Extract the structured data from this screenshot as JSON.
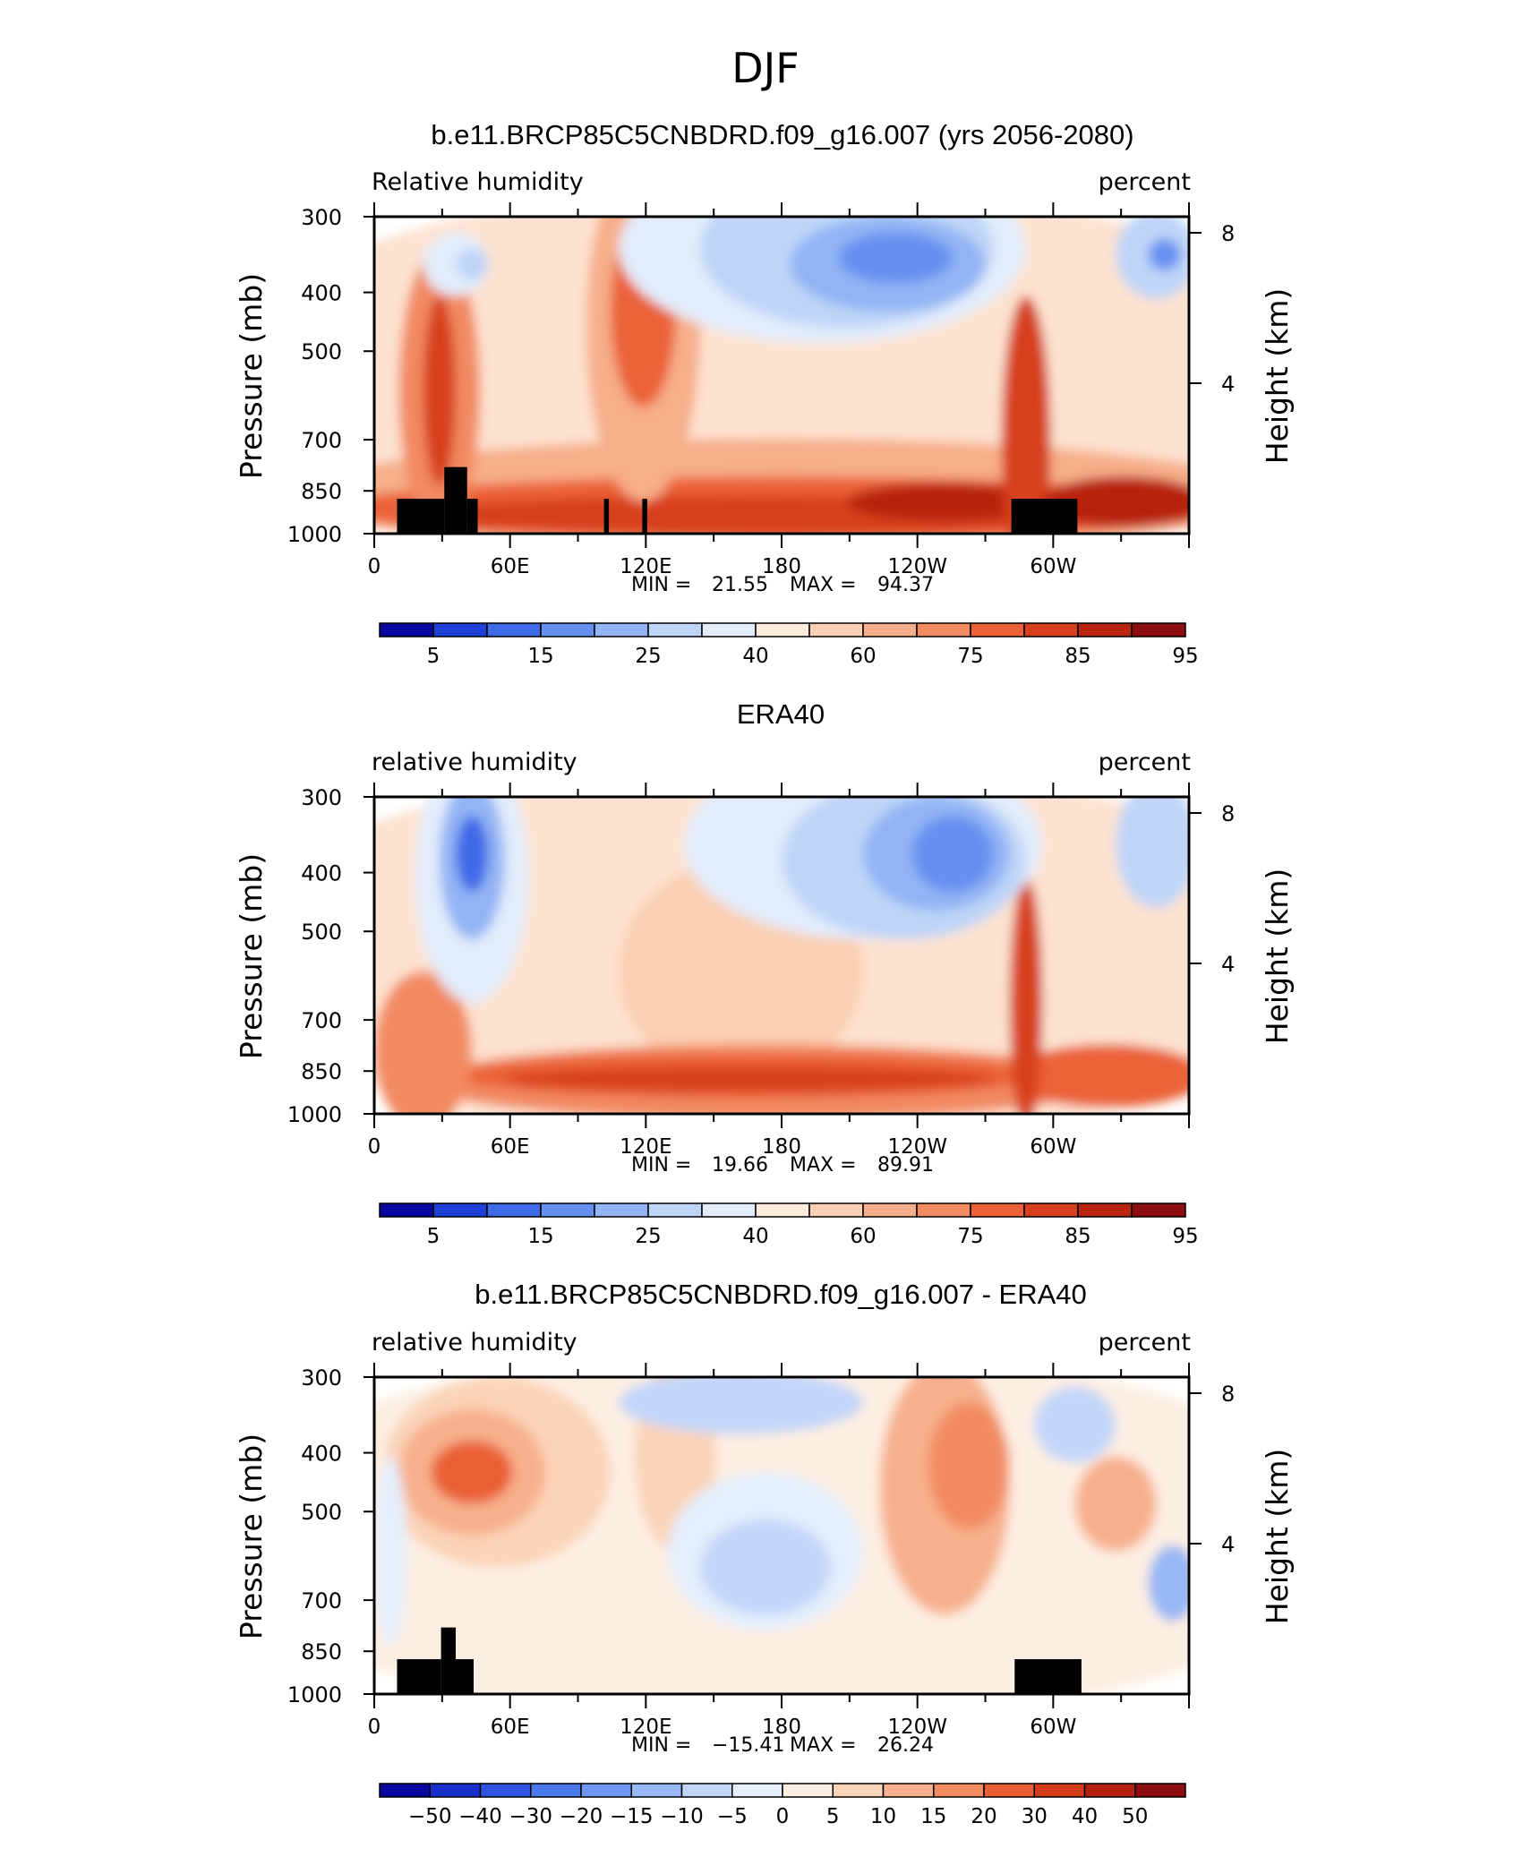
{
  "page_title": "DJF",
  "chart_data": [
    {
      "type": "heatmap",
      "title": "b.e11.BRCP85C5CNBDRD.f09_g16.007 (yrs 2056-2080)",
      "left_string": "Relative humidity",
      "right_string": "percent",
      "ylabel": "Pressure (mb)",
      "ylabel_right": "Height (km)",
      "yticks": [
        "300",
        "400",
        "500",
        "700",
        "850",
        "1000"
      ],
      "yticks_right": [
        "8",
        "4"
      ],
      "xticks": [
        "0",
        "60E",
        "120E",
        "180",
        "120W",
        "60W"
      ],
      "min_label": "MIN =",
      "min_value": "21.55",
      "max_label": "MAX =",
      "max_value": "94.37",
      "colorbar_labels": [
        "5",
        "15",
        "25",
        "40",
        "60",
        "75",
        "85",
        "95"
      ],
      "colorbar_colors": [
        "#08089e",
        "#1f3fd9",
        "#3f6be8",
        "#6690f0",
        "#93b4f4",
        "#bfd5f8",
        "#e2ecfb",
        "#fdebdc",
        "#fbcfb3",
        "#f7ae8a",
        "#f28a62",
        "#eb6238",
        "#d7401c",
        "#b82410",
        "#8d0c0c"
      ],
      "terrain": true
    },
    {
      "type": "heatmap",
      "title": "ERA40",
      "left_string": "relative humidity",
      "right_string": "percent",
      "ylabel": "Pressure (mb)",
      "ylabel_right": "Height (km)",
      "yticks": [
        "300",
        "400",
        "500",
        "700",
        "850",
        "1000"
      ],
      "yticks_right": [
        "8",
        "4"
      ],
      "xticks": [
        "0",
        "60E",
        "120E",
        "180",
        "120W",
        "60W"
      ],
      "min_label": "MIN =",
      "min_value": "19.66",
      "max_label": "MAX =",
      "max_value": "89.91",
      "colorbar_labels": [
        "5",
        "15",
        "25",
        "40",
        "60",
        "75",
        "85",
        "95"
      ],
      "colorbar_colors": [
        "#08089e",
        "#1f3fd9",
        "#3f6be8",
        "#6690f0",
        "#93b4f4",
        "#bfd5f8",
        "#e2ecfb",
        "#fdebdc",
        "#fbcfb3",
        "#f7ae8a",
        "#f28a62",
        "#eb6238",
        "#d7401c",
        "#b82410",
        "#8d0c0c"
      ],
      "terrain": false
    },
    {
      "type": "heatmap",
      "title": "b.e11.BRCP85C5CNBDRD.f09_g16.007 - ERA40",
      "left_string": "relative humidity",
      "right_string": "percent",
      "ylabel": "Pressure (mb)",
      "ylabel_right": "Height (km)",
      "yticks": [
        "300",
        "400",
        "500",
        "700",
        "850",
        "1000"
      ],
      "yticks_right": [
        "8",
        "4"
      ],
      "xticks": [
        "0",
        "60E",
        "120E",
        "180",
        "120W",
        "60W"
      ],
      "min_label": "MIN =",
      "min_value": "−15.41",
      "max_label": "MAX =",
      "max_value": "26.24",
      "colorbar_labels": [
        "−50",
        "−40",
        "−30",
        "−20",
        "−15",
        "−10",
        "−5",
        "0",
        "5",
        "10",
        "15",
        "20",
        "30",
        "40",
        "50"
      ],
      "colorbar_colors": [
        "#08089e",
        "#1a30cc",
        "#2f55e0",
        "#4a78ea",
        "#6f97f0",
        "#98b8f5",
        "#c2d6f9",
        "#e4eefc",
        "#fdeee2",
        "#fbd3b8",
        "#f7b08d",
        "#f28b62",
        "#ea6036",
        "#d43d1a",
        "#b3200f",
        "#8d0c0c"
      ],
      "terrain": true
    }
  ]
}
